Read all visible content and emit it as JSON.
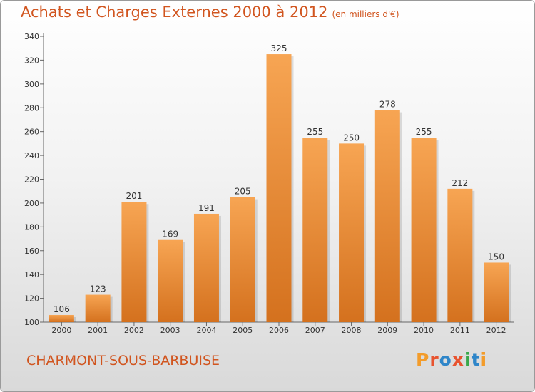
{
  "page": {
    "title": "Achats et Charges Externes 2000 à 2012",
    "subtitle": "(en milliers d'€)",
    "location": "CHARMONT-SOUS-BARBUISE",
    "brand": "Proxiti",
    "colors": {
      "title": "#d1551f",
      "bar_top": "#f7a553",
      "bar_bottom": "#d4711e",
      "brand_letters": [
        "#f39c2b",
        "#e8532f",
        "#2f86c9",
        "#e8532f",
        "#3aa84a",
        "#2f86c9",
        "#f39c2b"
      ]
    }
  },
  "chart_data": {
    "type": "bar",
    "title": "Achats et Charges Externes 2000 à 2012",
    "subtitle": "(en milliers d'€)",
    "categories": [
      "2000",
      "2001",
      "2002",
      "2003",
      "2004",
      "2005",
      "2006",
      "2007",
      "2008",
      "2009",
      "2010",
      "2011",
      "2012"
    ],
    "values": [
      106,
      123,
      201,
      169,
      191,
      205,
      325,
      255,
      250,
      278,
      255,
      212,
      150
    ],
    "xlabel": "",
    "ylabel": "",
    "ylim": [
      100,
      340
    ],
    "yticks": [
      100,
      120,
      140,
      160,
      180,
      200,
      220,
      240,
      260,
      280,
      300,
      320,
      340
    ],
    "grid": false,
    "legend": "none"
  }
}
